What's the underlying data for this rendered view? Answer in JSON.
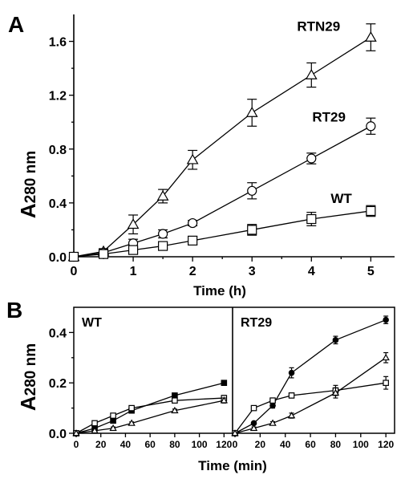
{
  "chart_data": [
    {
      "panel": "A",
      "type": "line",
      "xlabel": "Time (h)",
      "ylabel_main": "A",
      "ylabel_sub": "280 nm",
      "xlim": [
        0,
        5.4
      ],
      "ylim": [
        0,
        1.8
      ],
      "xticks": [
        "0",
        "1",
        "2",
        "3",
        "4",
        "5"
      ],
      "yticks": [
        "0.0",
        "0.4",
        "0.8",
        "1.2",
        "1.6"
      ],
      "series": [
        {
          "name": "RTN29",
          "marker": "triangle-open",
          "x": [
            0,
            0.5,
            1,
            1.5,
            2,
            3,
            4,
            5
          ],
          "y": [
            0,
            0.04,
            0.24,
            0.45,
            0.72,
            1.07,
            1.35,
            1.63
          ],
          "err": [
            0.01,
            0.02,
            0.07,
            0.05,
            0.07,
            0.1,
            0.09,
            0.1
          ]
        },
        {
          "name": "RT29",
          "marker": "circle-open",
          "x": [
            0,
            0.5,
            1,
            1.5,
            2,
            3,
            4,
            5
          ],
          "y": [
            0,
            0.03,
            0.1,
            0.17,
            0.25,
            0.49,
            0.73,
            0.97
          ],
          "err": [
            0.01,
            0.02,
            0.03,
            0.03,
            0.02,
            0.06,
            0.04,
            0.06
          ]
        },
        {
          "name": "WT",
          "marker": "square-open",
          "x": [
            0,
            0.5,
            1,
            1.5,
            2,
            3,
            4,
            5
          ],
          "y": [
            0,
            0.02,
            0.05,
            0.08,
            0.12,
            0.2,
            0.28,
            0.34
          ],
          "err": [
            0.01,
            0.01,
            0.02,
            0.02,
            0.03,
            0.04,
            0.05,
            0.04
          ]
        }
      ]
    },
    {
      "panel": "B",
      "type": "line",
      "xlabel": "Time (min)",
      "ylabel_main": "A",
      "ylabel_sub": "280 nm",
      "ylim": [
        0,
        0.5
      ],
      "yticks": [
        "0.0",
        "0.2",
        "0.4"
      ],
      "subpanels": [
        {
          "label": "WT",
          "xticks": [
            "0",
            "20",
            "40",
            "60",
            "80",
            "100",
            "120"
          ],
          "series": [
            {
              "marker": "square-filled",
              "x": [
                0,
                15,
                30,
                45,
                80,
                120
              ],
              "y": [
                0,
                0.02,
                0.05,
                0.09,
                0.15,
                0.2
              ],
              "err": [
                0,
                0.004,
                0.005,
                0.005,
                0.006,
                0.007
              ]
            },
            {
              "marker": "square-open",
              "x": [
                0,
                15,
                30,
                45,
                80,
                120
              ],
              "y": [
                0,
                0.04,
                0.07,
                0.1,
                0.13,
                0.14
              ],
              "err": [
                0,
                0.004,
                0.005,
                0.005,
                0.006,
                0.01
              ]
            },
            {
              "marker": "triangle-open",
              "x": [
                0,
                15,
                30,
                45,
                80,
                120
              ],
              "y": [
                0,
                0.01,
                0.02,
                0.04,
                0.09,
                0.13
              ],
              "err": [
                0,
                0.004,
                0.005,
                0.005,
                0.006,
                0.01
              ]
            }
          ]
        },
        {
          "label": "RT29",
          "xticks": [
            "0",
            "20",
            "40",
            "60",
            "80",
            "100",
            "120"
          ],
          "series": [
            {
              "marker": "circle-filled",
              "x": [
                0,
                15,
                30,
                45,
                80,
                120
              ],
              "y": [
                0,
                0.04,
                0.11,
                0.24,
                0.37,
                0.45
              ],
              "err": [
                0,
                0.005,
                0.01,
                0.02,
                0.015,
                0.015
              ]
            },
            {
              "marker": "square-open",
              "x": [
                0,
                15,
                30,
                45,
                80,
                120
              ],
              "y": [
                0,
                0.1,
                0.13,
                0.15,
                0.17,
                0.2
              ],
              "err": [
                0,
                0.006,
                0.01,
                0.01,
                0.02,
                0.025
              ]
            },
            {
              "marker": "triangle-open",
              "x": [
                0,
                15,
                30,
                45,
                80,
                120
              ],
              "y": [
                0,
                0.02,
                0.04,
                0.07,
                0.16,
                0.3
              ],
              "err": [
                0,
                0.005,
                0.006,
                0.01,
                0.02,
                0.02
              ]
            }
          ]
        }
      ]
    }
  ]
}
